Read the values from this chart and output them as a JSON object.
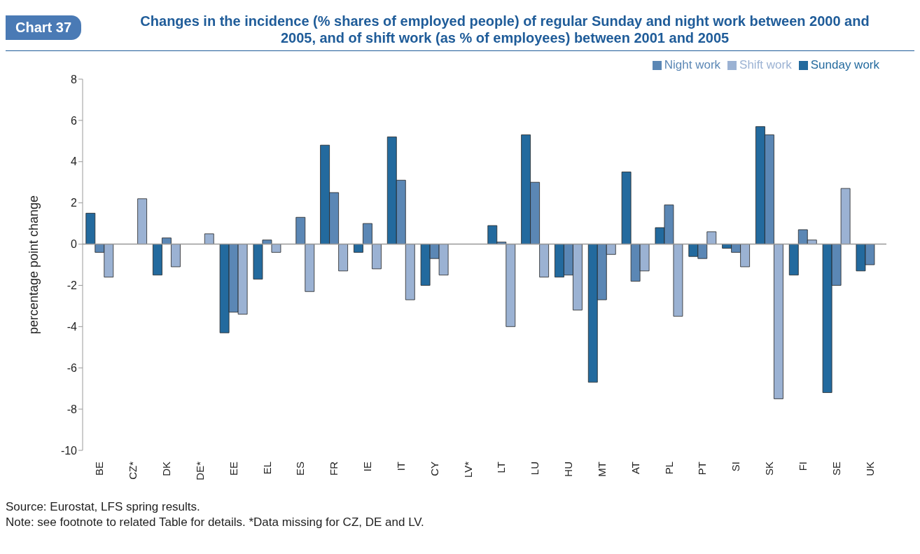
{
  "chart_data": {
    "type": "bar",
    "title": "Changes in the incidence (% shares of employed people) of regular Sunday and night work between 2000 and 2005, and of shift work (as % of employees) between 2001 and 2005",
    "ylabel": "percentage point change",
    "annotations": [
      "Chart 37",
      "Source: Eurostat, LFS spring results.",
      "Note: see footnote to related Table for details. *Data missing for CZ, DE and LV."
    ],
    "categories": [
      "BE",
      "CZ*",
      "DK",
      "DE*",
      "EE",
      "EL",
      "ES",
      "FR",
      "IE",
      "IT",
      "CY",
      "LV*",
      "LT",
      "LU",
      "HU",
      "MT",
      "AT",
      "PL",
      "PT",
      "SI",
      "SK",
      "FI",
      "SE",
      "UK"
    ],
    "series": [
      {
        "name": "Sunday work",
        "color": "#236a9e",
        "values": [
          1.5,
          null,
          -1.5,
          null,
          -4.3,
          -1.7,
          0,
          4.8,
          -0.4,
          5.2,
          -2.0,
          null,
          0.9,
          5.3,
          -1.6,
          -6.7,
          3.5,
          0.8,
          -0.6,
          -0.2,
          5.7,
          -1.5,
          -7.2,
          -1.3
        ]
      },
      {
        "name": "Night work",
        "color": "#5b87b5",
        "values": [
          -0.4,
          null,
          0.3,
          null,
          -3.3,
          0.2,
          1.3,
          2.5,
          1.0,
          3.1,
          -0.7,
          null,
          0.1,
          3.0,
          -1.5,
          -2.7,
          -1.8,
          1.9,
          -0.7,
          -0.4,
          5.3,
          0.7,
          -2.0,
          -1.0
        ]
      },
      {
        "name": "Shift work",
        "color": "#9bb2d3",
        "values": [
          -1.6,
          2.2,
          -1.1,
          0.5,
          -3.4,
          -0.4,
          -2.3,
          -1.3,
          -1.2,
          -2.7,
          -1.5,
          null,
          -4.0,
          -1.6,
          -3.2,
          -0.5,
          -1.3,
          -3.5,
          0.6,
          -1.1,
          -7.5,
          0.2,
          2.7,
          0
        ]
      }
    ],
    "ylim": [
      -10,
      8
    ],
    "yticks": [
      -10,
      -8,
      -6,
      -4,
      -2,
      0,
      2,
      4,
      6,
      8
    ],
    "legend": "top right"
  }
}
